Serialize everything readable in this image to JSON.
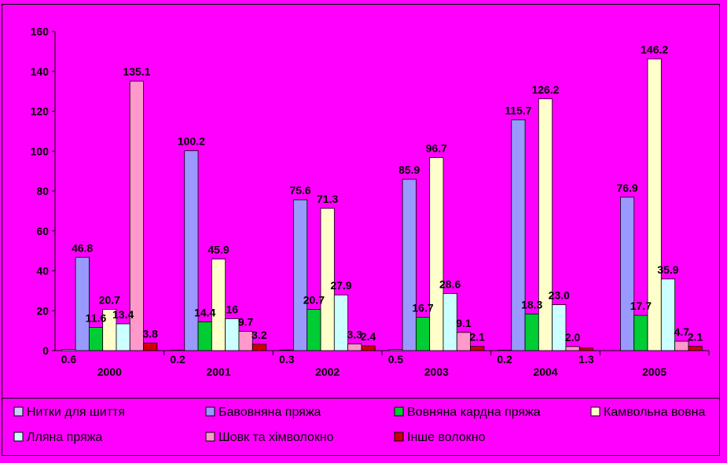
{
  "chart_data": {
    "type": "bar",
    "title": "",
    "xlabel": "",
    "ylabel": "",
    "ylim": [
      0,
      160
    ],
    "yticks": [
      "0",
      "20",
      "40",
      "60",
      "80",
      "100",
      "120",
      "140",
      "160"
    ],
    "categories": [
      "2000",
      "2001",
      "2002",
      "2003",
      "2004",
      "2005"
    ],
    "grid": false,
    "legend_position": "bottom",
    "series": [
      {
        "name": "Нитки для шиття",
        "color": "#ccccff",
        "values": [
          0.6,
          0.2,
          0.3,
          0.5,
          0.2,
          0.0
        ],
        "labels": [
          "0.6",
          "0.2",
          "0.3",
          "0.5",
          "0.2",
          ""
        ]
      },
      {
        "name": "Бавовняна пряжа",
        "color": "#9999ff",
        "values": [
          46.8,
          100.2,
          75.6,
          85.9,
          115.7,
          76.9
        ],
        "labels": [
          "46.8",
          "100.2",
          "75.6",
          "85.9",
          "115.7",
          "76.9"
        ]
      },
      {
        "name": "Вовняна кардна пряжа",
        "color": "#00cc33",
        "values": [
          11.6,
          14.4,
          20.7,
          16.7,
          18.3,
          17.7
        ],
        "labels": [
          "11.6",
          "14.4",
          "20.7",
          "16.7",
          "18.3",
          "17.7"
        ]
      },
      {
        "name": "Камвольна вовна",
        "color": "#ffffcc",
        "values": [
          20.7,
          45.9,
          71.3,
          96.7,
          126.2,
          146.2
        ],
        "labels": [
          "20.7",
          "45.9",
          "71.3",
          "96.7",
          "126.2",
          "146.2"
        ]
      },
      {
        "name": "Лляна пряжа",
        "color": "#ccffff",
        "values": [
          13.4,
          16.0,
          27.9,
          28.6,
          23.0,
          35.9
        ],
        "labels": [
          "13.4",
          "16",
          "27.9",
          "28.6",
          "23.0",
          "35.9"
        ]
      },
      {
        "name": "Шовк та хімволокно",
        "color": "#ff99cc",
        "values": [
          135.1,
          9.7,
          3.3,
          9.1,
          2.0,
          4.7
        ],
        "labels": [
          "135.1",
          "9.7",
          "3.3",
          "9.1",
          "2.0",
          "4.7"
        ]
      },
      {
        "name": "Інше волокно",
        "color": "#cc0000",
        "values": [
          3.8,
          3.2,
          2.4,
          2.1,
          1.3,
          2.1
        ],
        "labels": [
          "3.8",
          "3.2",
          "2.4",
          "2.1",
          "1.3",
          "2.1"
        ]
      }
    ]
  }
}
